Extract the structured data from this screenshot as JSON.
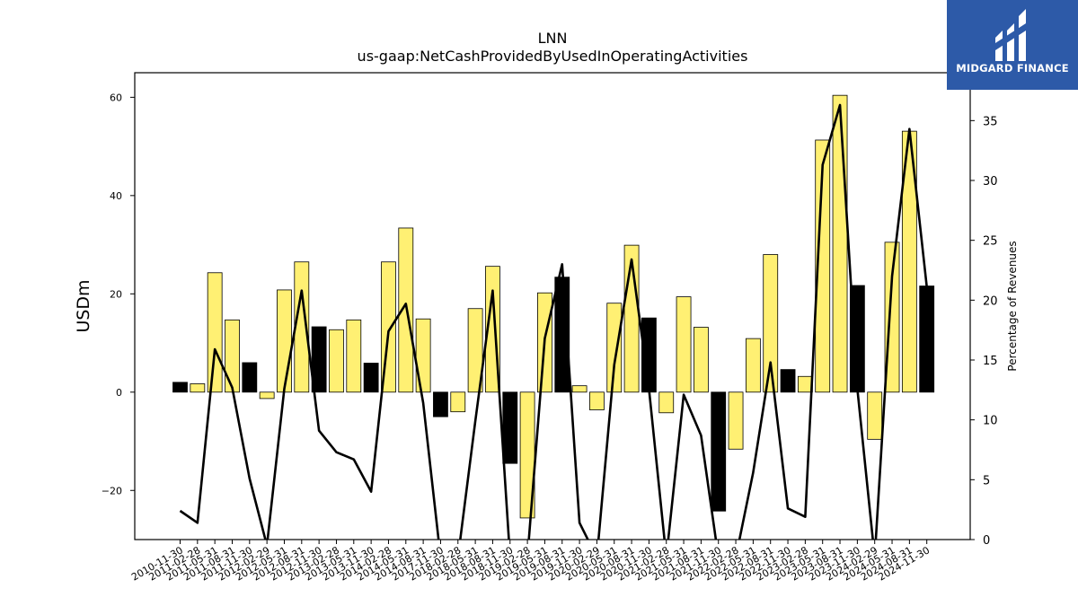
{
  "chart_data": {
    "type": "bar",
    "title": "LNN",
    "subtitle": "us-gaap:NetCashProvidedByUsedInOperatingActivities",
    "ylabel": "USDm",
    "y2label": "Percentage of Revenues",
    "ylim": [
      -30,
      65
    ],
    "y2lim": [
      0,
      39
    ],
    "yticks": [
      -20,
      0,
      20,
      40,
      60
    ],
    "y2ticks": [
      0,
      5,
      10,
      15,
      20,
      25,
      30,
      35
    ],
    "grid": false,
    "categories": [
      "2010-11-30",
      "2011-02-28",
      "2011-05-31",
      "2011-08-31",
      "2011-11-30",
      "2012-02-29",
      "2012-05-31",
      "2012-08-31",
      "2012-11-30",
      "2013-02-28",
      "2013-05-31",
      "2013-11-30",
      "2014-02-28",
      "2014-05-31",
      "2014-08-31",
      "2017-11-30",
      "2018-02-28",
      "2018-05-31",
      "2018-08-31",
      "2018-11-30",
      "2019-02-28",
      "2019-05-31",
      "2019-08-31",
      "2019-11-30",
      "2020-02-29",
      "2020-05-31",
      "2020-08-31",
      "2020-11-30",
      "2021-02-28",
      "2021-05-31",
      "2021-08-31",
      "2021-11-30",
      "2022-02-28",
      "2022-05-31",
      "2022-08-31",
      "2022-11-30",
      "2023-02-28",
      "2023-05-31",
      "2023-08-31",
      "2023-11-30",
      "2024-02-29",
      "2024-05-31",
      "2024-08-31",
      "2024-11-30"
    ],
    "series": [
      {
        "type": "bar",
        "values": [
          2.0,
          1.7,
          24.3,
          14.7,
          6.0,
          -1.3,
          20.8,
          26.5,
          13.3,
          12.7,
          14.7,
          5.9,
          26.5,
          33.4,
          14.9,
          -5.0,
          -4.0,
          17.0,
          25.6,
          -14.5,
          -25.6,
          20.2,
          23.4,
          1.3,
          -3.6,
          18.1,
          29.9,
          15.1,
          -4.2,
          19.4,
          13.2,
          -24.2,
          -11.6,
          10.9,
          28.0,
          4.6,
          3.2,
          51.3,
          60.4,
          21.7,
          -9.6,
          30.5,
          53.1,
          21.6
        ],
        "colors": [
          "#000000",
          "#fff073",
          "#fff073",
          "#fff073",
          "#000000",
          "#fff073",
          "#fff073",
          "#fff073",
          "#000000",
          "#fff073",
          "#fff073",
          "#000000",
          "#fff073",
          "#fff073",
          "#fff073",
          "#000000",
          "#fff073",
          "#fff073",
          "#fff073",
          "#000000",
          "#fff073",
          "#fff073",
          "#000000",
          "#fff073",
          "#fff073",
          "#fff073",
          "#fff073",
          "#000000",
          "#fff073",
          "#fff073",
          "#fff073",
          "#000000",
          "#fff073",
          "#fff073",
          "#fff073",
          "#000000",
          "#fff073",
          "#fff073",
          "#fff073",
          "#000000",
          "#fff073",
          "#fff073",
          "#fff073",
          "#000000"
        ]
      },
      {
        "type": "line",
        "axis": "right",
        "color": "#000000",
        "values": [
          2.4,
          1.4,
          15.9,
          12.7,
          5.1,
          -0.5,
          12.6,
          20.8,
          9.1,
          7.3,
          6.7,
          4.0,
          17.4,
          19.7,
          11.4,
          -1.5,
          -1.5,
          9.9,
          20.8,
          -1.5,
          -1.5,
          16.8,
          23.0,
          1.4,
          -1.5,
          14.6,
          23.4,
          12.6,
          -1.5,
          12.1,
          8.7,
          -1.5,
          -1.5,
          5.6,
          14.8,
          2.6,
          1.9,
          31.3,
          36.3,
          12.6,
          -1.5,
          22.0,
          34.3,
          21.1
        ]
      }
    ]
  },
  "logo": {
    "text": "MIDGARD FINANCE",
    "bg_color": "#2d5aa8"
  }
}
